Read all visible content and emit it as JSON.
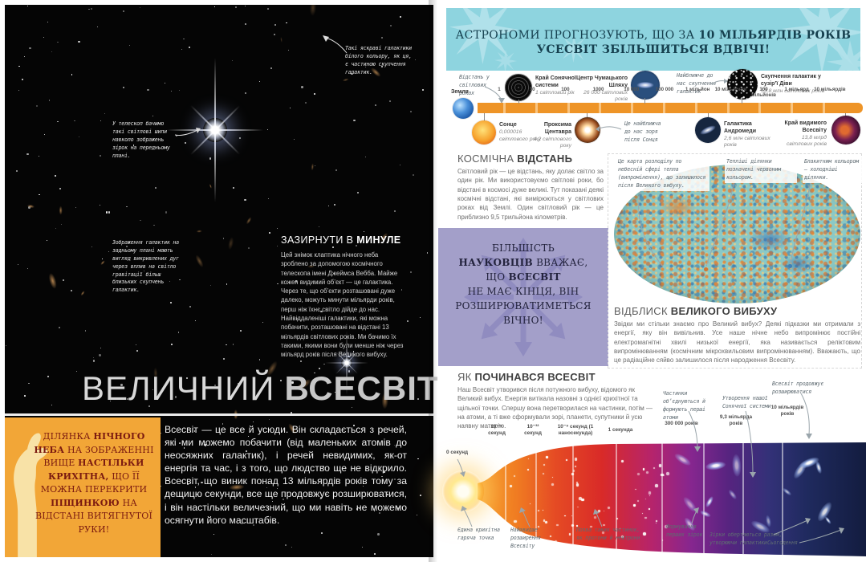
{
  "colors": {
    "banner_bg": "#8ed4df",
    "banner_text": "#16404f",
    "timeline_bar": "#ee9427",
    "purple_box": "#a39fc9",
    "sidebar_bg": "#f2a637",
    "sidebar_text": "#7b1a10",
    "photo_bg": "#050505"
  },
  "left_page": {
    "photo_annotations": {
      "bright_galaxies": "Такі яскраві галактики білого кольору, як ця, є частиною скупчення галактик.",
      "light_spikes": "У телескоп бачимо такі світлові шипи навколо зображень зірок на передньому плані.",
      "warped_arcs": "Зображення галактик на задньому плані мають вигляд викривлених дуг через вплив на світло гравітації більш близьких скупчень галактик."
    },
    "look_back": {
      "heading_regular": "ЗАЗИРНУТИ В ",
      "heading_bold": "МИНУЛЕ",
      "body": "Цей знімок клаптика нічного неба зроблено за допомогою космічного телескопа імені Джеймса Вебба. Майже кожен видимий об’єкт — це галактика. Через те, що об’єкти розташовані дуже далеко, можуть минути мільярди років, перш ніж їхнє світло дійде до нас. Найвіддаленіші галактики, які можна побачити, розташовані на відстані 13 мільярдів світлових років. Ми бачимо їх такими, якими вони були менше ніж через мільярд років після Великого вибуху."
    },
    "title": {
      "regular": "ВЕЛИЧНИЙ",
      "bold": "ВСЕСВІТ"
    },
    "sidebar": {
      "p1": "ДІЛЯНКА ",
      "b1": "НІЧНОГО НЕБА",
      "p2": " НА ЗОБРАЖЕННІ ВИЩЕ ",
      "b2": "НАСТІЛЬКИ КРИХІТНА,",
      "p3": " ЩО ЇЇ МОЖНА ПЕРЕКРИТИ ",
      "b3": "ПІЩИНКОЮ",
      "p4": " НА ВІДСТАНІ ВИТЯГНУТОЇ РУКИ!"
    },
    "intro": "Всесвіт — це все й усюди. Він складається з речей, які ми можемо побачити (від маленьких атомів до неосяжних галактик), і речей невидимих, як-от енергія та час, і з того, що людство ще не відкрило. Всесвіт, що виник понад 13 мільярдів років тому за дещицю секунди, все ще продовжує розширюватися, і він настільки величезний, що ми навіть не можемо осягнути його масштабів."
  },
  "right_page": {
    "banner": {
      "l1a": "АСТРОНОМИ ПРОГНОЗУЮТЬ, ЩО ЗА ",
      "l1b": "10 МІЛЬЯРДІВ РОКІВ",
      "l2": "УСЕСВІТ ЗБІЛЬШИТЬСЯ ВДВІЧІ!"
    },
    "timeline": {
      "axis_note": "Відстань у світлових роках",
      "earth": "Земля",
      "scale": [
        "1",
        "10",
        "100",
        "1000",
        "10 000",
        "100 000",
        "1 мільйон",
        "10 мільйонів",
        "100 мільйонів",
        "1 мільярд",
        "10 мільярдів"
      ],
      "solar_edge_name": "Край Сонячної системи",
      "solar_edge_value": "1 світловий рік",
      "milky_center_name": "Центр Чумацького Шляху",
      "milky_center_value": "26 000 світлових років",
      "cluster_note": "Найближче до нас скупчення галактик",
      "virgo_name": "Скупчення галактик у сузір’ї Діви",
      "virgo_value": "53,8 млн світлових років",
      "sun_name": "Сонце",
      "sun_value": "0,000016 світлового року",
      "proxima_name": "Проксима Центавра",
      "proxima_value": "4,2 світлового року",
      "proxima_note": "Це найближча до нас зоря після Сонця",
      "andromeda_name": "Галактика Андромеди",
      "andromeda_value": "2,6 млн світлових років",
      "edge_name": "Край видимого Всесвіту",
      "edge_value": "13,8 млрд світлових років"
    },
    "cosmic_distance": {
      "heading_regular": "КОСМІЧНА ",
      "heading_bold": "ВІДСТАНЬ",
      "body": "Світловий рік — це відстань, яку долає світло за один рік. Ми використовуємо світлові роки, бо відстані в космосі дуже великі. Тут показані деякі космічні відстані, які вимірюються у світлових роках від Землі. Один світловий рік — це приблизно 9,5 трильйона кілометрів."
    },
    "scientists_box": {
      "l1": "БІЛЬШІСТЬ",
      "l2b": "НАУКОВЦІВ",
      "l2": " ВВАЖАЄ,",
      "l3": "ЩО ",
      "l3b": "ВСЕСВІТ",
      "l4": "НЕ МАЄ КІНЦЯ, ВІН",
      "l5": "РОЗШИРЮВАТИМЕТЬСЯ",
      "l6": "ВІЧНО!"
    },
    "cmb": {
      "note_map": "Це карта розподілу по небесній сфері тепла (випромінення), що залишилося після Великого вибуху.",
      "note_warm": "Тепліші ділянки позначені червоним кольором.",
      "note_cold": "Блакитним кольором — холодніші ділянки."
    },
    "afterglow": {
      "heading_regular": "ВІДБЛИСК ",
      "heading_bold": "ВЕЛИКОГО ВИБУХУ",
      "body": "Звідки ми стільки знаємо про Великий вибух? Деякі підказки ми отримали з енергії, яку він вивільнив. Усе наше нічне небо випромінює постійні електромагнітні хвилі низької енергії, яка називається реліктовим випромінюванням (космічним мікрохвильовим випромінюванням). Вважають, що це радіаційне сяйво залишилося після народження Всесвіту."
    },
    "origin": {
      "heading_regular": "ЯК ",
      "heading_bold": "ПОЧИНАВСЯ ВСЕСВІТ",
      "body": "Наш Всесвіт утворився після потужного вибуху, відомого як Великий вибух. Енергія витікала назовні з однієї крихітної та щільної точки. Спершу вона перетворилася на частинки, потім — на атоми, а ті вже сформували зорі, планети, супутники й усю наявну матерію.",
      "time_labels": [
        "0 секунд",
        "10⁻³⁵ секунд",
        "10⁻³² секунд",
        "10⁻⁹ секунд (1 наносекунда)",
        "1 секунда",
        "300 000 років",
        "9,3 мільярда років",
        "10 мільярдів років"
      ],
      "top_notes": [
        "Частинки об’єднуються й формують перші атоми",
        "Утворення нашої Сонячної системи",
        "Всесвіт продовжує розширюватися"
      ],
      "bottom_notes": [
        "Єдина крихітна гаряча точка",
        "Найшвидше розширення Всесвіту",
        "Поява таких частинок, як протони й нейтрони",
        "Формування перших зірок",
        "Зірки обертаються разом, утворюючи галактики",
        "Сьогодення"
      ]
    }
  }
}
